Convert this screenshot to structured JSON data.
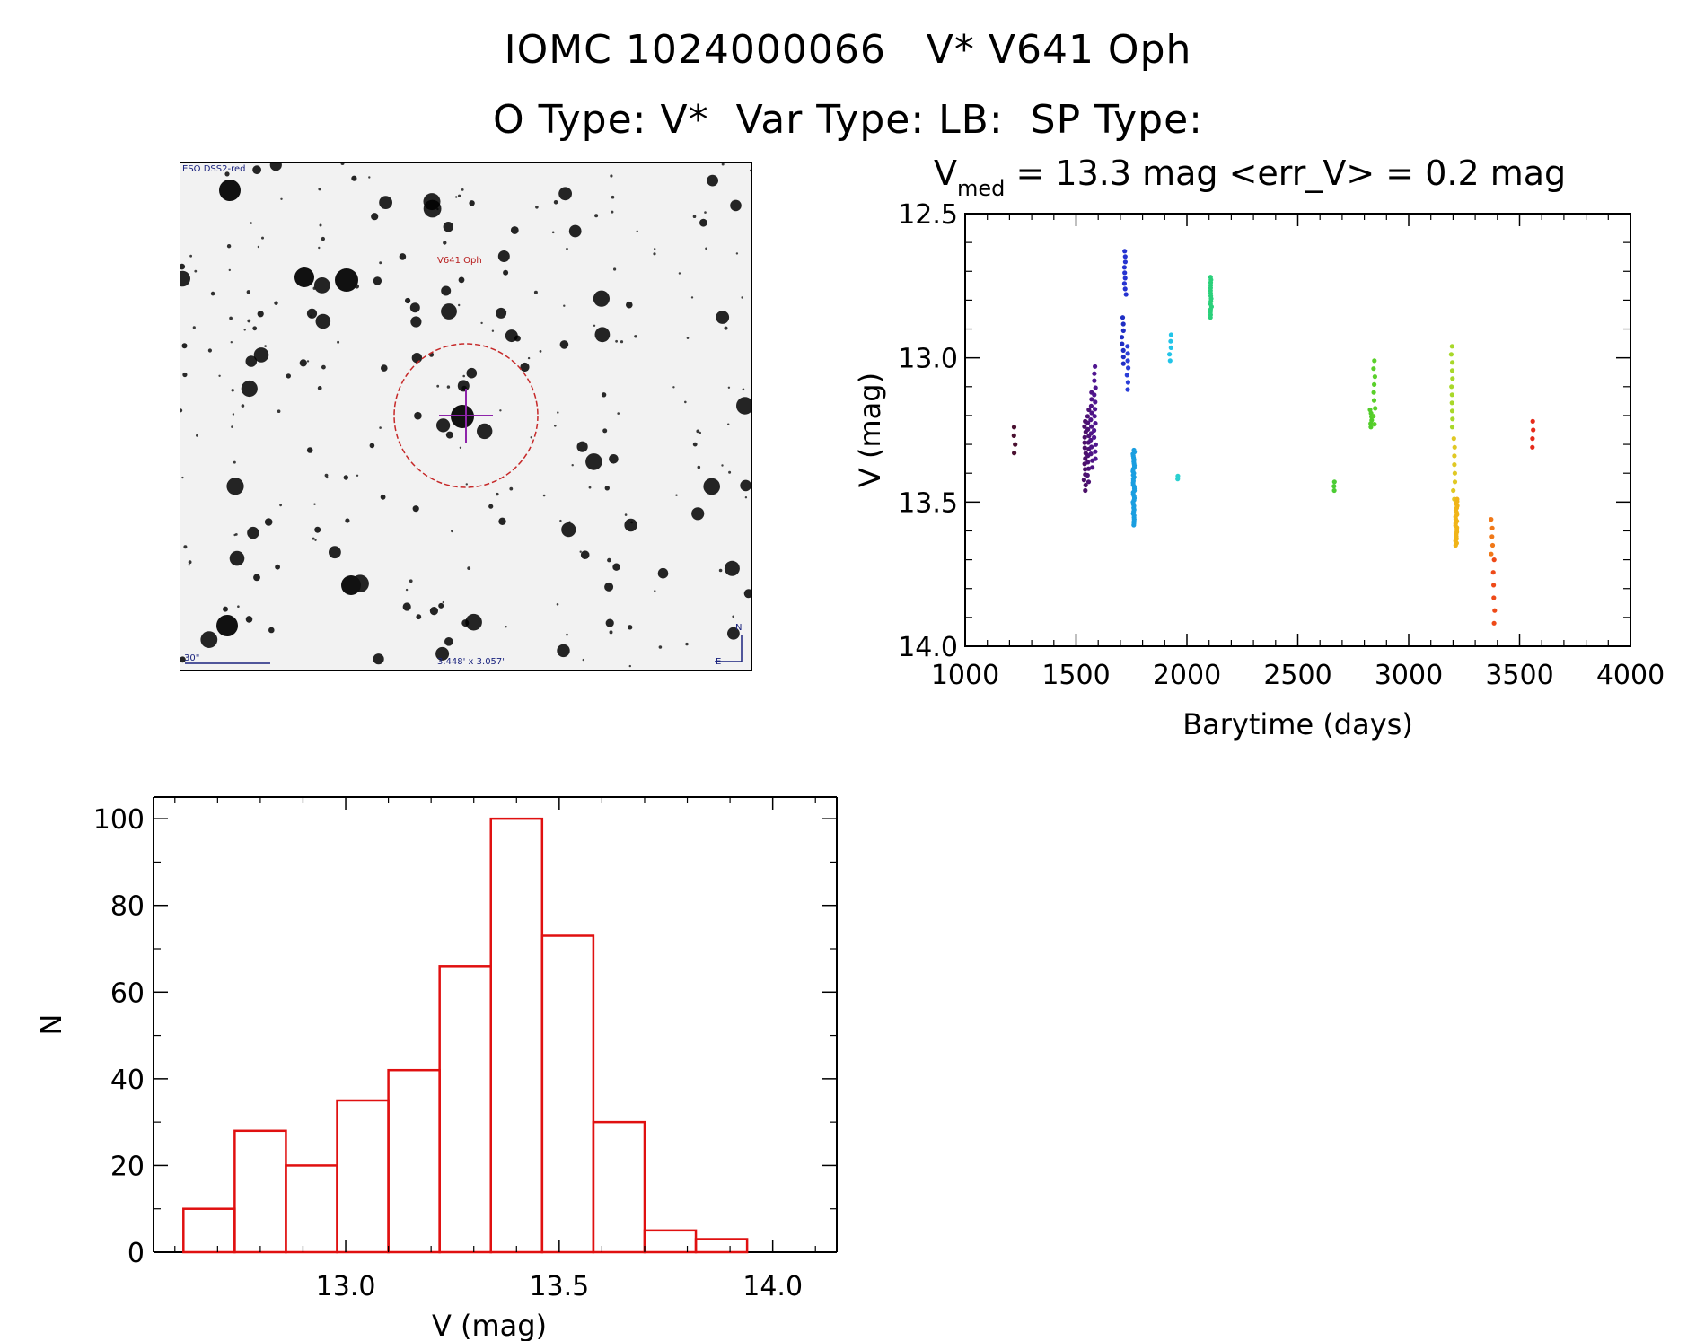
{
  "header": {
    "title_line1": "IOMC 1024000066   V* V641 Oph",
    "title_line2": "O Type: V*  Var Type: LB:  SP Type:"
  },
  "finder": {
    "survey_label": "ESO DSS2-red",
    "target_label": "V641 Oph",
    "scale_label": "30\"",
    "fov_label": "3.448' x 3.057'",
    "north_label": "N",
    "east_label": "E",
    "colors": {
      "circle": "#c62828",
      "cross": "#8e24aa",
      "annotation": "#1a237e"
    }
  },
  "chart_data": [
    {
      "type": "scatter",
      "title_main": "V",
      "title_sub": "med",
      "title_rest": " = 13.3 mag <err_V> = 0.2 mag",
      "xlabel": "Barytime (days)",
      "ylabel": "V (mag)",
      "xlim": [
        1000,
        4000
      ],
      "ylim": [
        14.0,
        12.5
      ],
      "y_inverted": true,
      "xticks": [
        1000,
        1500,
        2000,
        2500,
        3000,
        3500,
        4000
      ],
      "xtick_labels": [
        "1000",
        "1500",
        "2000",
        "2500",
        "3000",
        "3500",
        "4000"
      ],
      "yticks": [
        12.5,
        13.0,
        13.5,
        14.0
      ],
      "ytick_labels": [
        "12.5",
        "13.0",
        "13.5",
        "14.0"
      ],
      "groups": [
        {
          "x": 1222,
          "y_range": [
            13.24,
            13.33
          ],
          "n": 4,
          "color": "#4a1030"
        },
        {
          "x": 1540,
          "y_range": [
            13.22,
            13.46
          ],
          "n": 14,
          "color": "#4b1068"
        },
        {
          "x": 1555,
          "y_range": [
            13.18,
            13.43
          ],
          "n": 12,
          "color": "#4d1275"
        },
        {
          "x": 1570,
          "y_range": [
            13.12,
            13.38
          ],
          "n": 12,
          "color": "#4e1485"
        },
        {
          "x": 1585,
          "y_range": [
            13.03,
            13.35
          ],
          "n": 14,
          "color": "#501690"
        },
        {
          "x": 1710,
          "y_range": [
            12.86,
            13.02
          ],
          "n": 8,
          "color": "#1f2ec4"
        },
        {
          "x": 1722,
          "y_range": [
            12.63,
            12.78
          ],
          "n": 9,
          "color": "#2633d0"
        },
        {
          "x": 1732,
          "y_range": [
            12.96,
            13.11
          ],
          "n": 7,
          "color": "#2a3ed8"
        },
        {
          "x": 1760,
          "y_range": [
            13.32,
            13.58
          ],
          "n": 40,
          "color": "#1a9ee0"
        },
        {
          "x": 1925,
          "y_range": [
            12.92,
            13.01
          ],
          "n": 5,
          "color": "#22c4e8"
        },
        {
          "x": 1960,
          "y_range": [
            13.41,
            13.42
          ],
          "n": 2,
          "color": "#2ad0d0"
        },
        {
          "x": 2110,
          "y_range": [
            12.72,
            12.86
          ],
          "n": 16,
          "color": "#2ad07a"
        },
        {
          "x": 2665,
          "y_range": [
            13.43,
            13.46
          ],
          "n": 3,
          "color": "#4ccc34"
        },
        {
          "x": 2830,
          "y_range": [
            13.18,
            13.24
          ],
          "n": 6,
          "color": "#52cc2a"
        },
        {
          "x": 2845,
          "y_range": [
            13.01,
            13.23
          ],
          "n": 9,
          "color": "#5ad02a"
        },
        {
          "x": 3195,
          "y_range": [
            12.96,
            13.24
          ],
          "n": 11,
          "color": "#a8d82a"
        },
        {
          "x": 3205,
          "y_range": [
            13.28,
            13.49
          ],
          "n": 8,
          "color": "#e0c824"
        },
        {
          "x": 3215,
          "y_range": [
            13.49,
            13.65
          ],
          "n": 22,
          "color": "#f0b418"
        },
        {
          "x": 3375,
          "y_range": [
            13.56,
            13.68
          ],
          "n": 5,
          "color": "#f07818"
        },
        {
          "x": 3385,
          "y_range": [
            13.7,
            13.92
          ],
          "n": 6,
          "color": "#ee4a18"
        },
        {
          "x": 3560,
          "y_range": [
            13.22,
            13.31
          ],
          "n": 4,
          "color": "#e62a1a"
        }
      ]
    },
    {
      "type": "bar",
      "subtype": "histogram",
      "xlabel": "V (mag)",
      "ylabel": "N",
      "xlim": [
        12.55,
        14.15
      ],
      "ylim": [
        0,
        105
      ],
      "xticks": [
        13.0,
        13.5,
        14.0
      ],
      "xtick_labels": [
        "13.0",
        "13.5",
        "14.0"
      ],
      "yticks": [
        0,
        20,
        40,
        60,
        80,
        100
      ],
      "ytick_labels": [
        "0",
        "20",
        "40",
        "60",
        "80",
        "100"
      ],
      "bin_width": 0.12,
      "bin_start": 12.62,
      "values": [
        10,
        28,
        20,
        35,
        42,
        66,
        100,
        73,
        30,
        5,
        3
      ],
      "color": "#e01010"
    }
  ]
}
